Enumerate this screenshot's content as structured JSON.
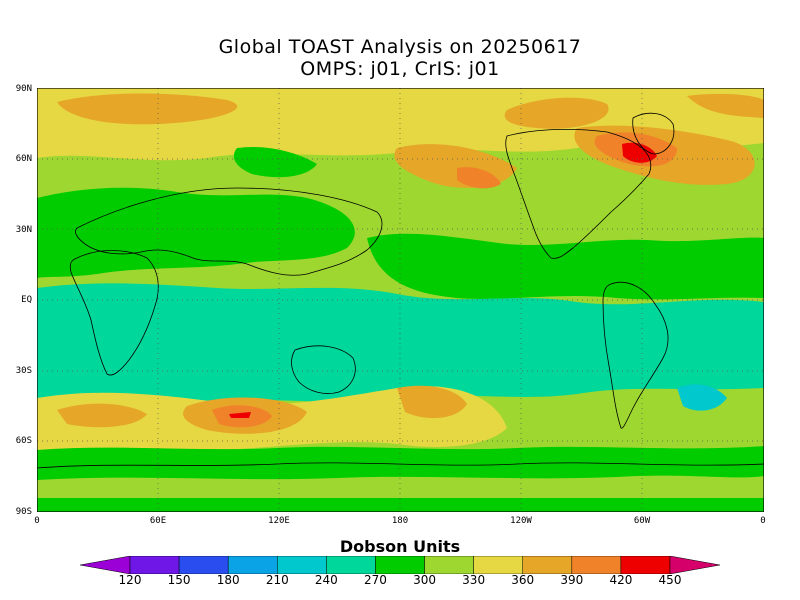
{
  "title": {
    "line1": "Global TOAST Analysis on 20250617",
    "line2": "OMPS: j01, CrIS: j01"
  },
  "map": {
    "lat_labels": [
      "90N",
      "60N",
      "30N",
      "EQ",
      "30S",
      "60S",
      "90S"
    ],
    "lon_labels": [
      "0",
      "60E",
      "120E",
      "180",
      "120W",
      "60W",
      "0"
    ],
    "graticule": "dotted"
  },
  "colorbar": {
    "label": "Dobson Units",
    "ticks": [
      "120",
      "150",
      "180",
      "210",
      "240",
      "270",
      "300",
      "330",
      "360",
      "390",
      "420",
      "450"
    ],
    "colors": [
      "#9b00d6",
      "#6e17e6",
      "#2a4df0",
      "#0aa4e6",
      "#00c8cc",
      "#00d79a",
      "#00cc00",
      "#9dd730",
      "#e6d843",
      "#e6a628",
      "#f0822a",
      "#ef0000",
      "#d6006b"
    ]
  }
}
